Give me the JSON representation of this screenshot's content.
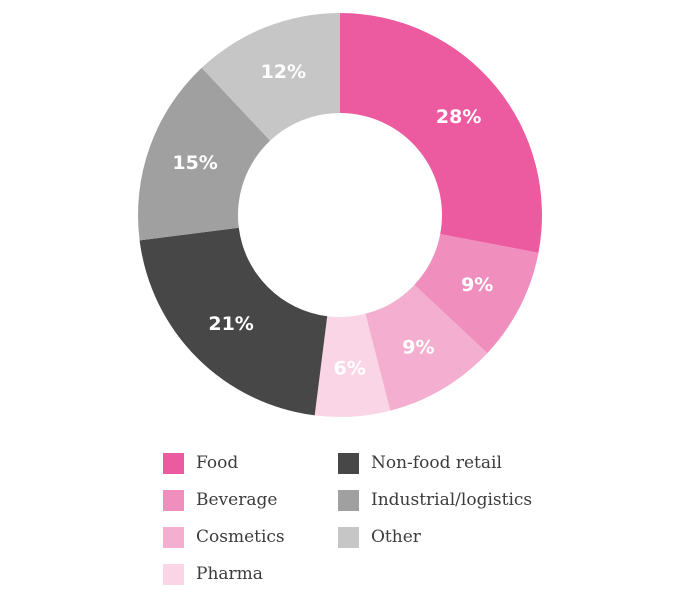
{
  "chart_data": {
    "type": "pie",
    "donut": true,
    "legend_position": "bottom",
    "slices": [
      {
        "label": "Food",
        "value": 28,
        "display": "28%",
        "color": "#ec5aa0"
      },
      {
        "label": "Beverage",
        "value": 9,
        "display": "9%",
        "color": "#f08fbd"
      },
      {
        "label": "Cosmetics",
        "value": 9,
        "display": "9%",
        "color": "#f4afd0"
      },
      {
        "label": "Pharma",
        "value": 6,
        "display": "6%",
        "color": "#f9d5e6"
      },
      {
        "label": "Non-food retail",
        "value": 21,
        "display": "21%",
        "color": "#474747"
      },
      {
        "label": "Industrial/logistics",
        "value": 15,
        "display": "15%",
        "color": "#a0a0a0"
      },
      {
        "label": "Other",
        "value": 12,
        "display": "12%",
        "color": "#c6c6c6"
      }
    ]
  },
  "legend": {
    "items": [
      {
        "label": "Food",
        "color": "#ec5aa0"
      },
      {
        "label": "Beverage",
        "color": "#f08fbd"
      },
      {
        "label": "Cosmetics",
        "color": "#f4afd0"
      },
      {
        "label": "Pharma",
        "color": "#f9d5e6"
      },
      {
        "label": "Non-food retail",
        "color": "#474747"
      },
      {
        "label": "Industrial/logistics",
        "color": "#a0a0a0"
      },
      {
        "label": "Other",
        "color": "#c6c6c6"
      }
    ]
  }
}
